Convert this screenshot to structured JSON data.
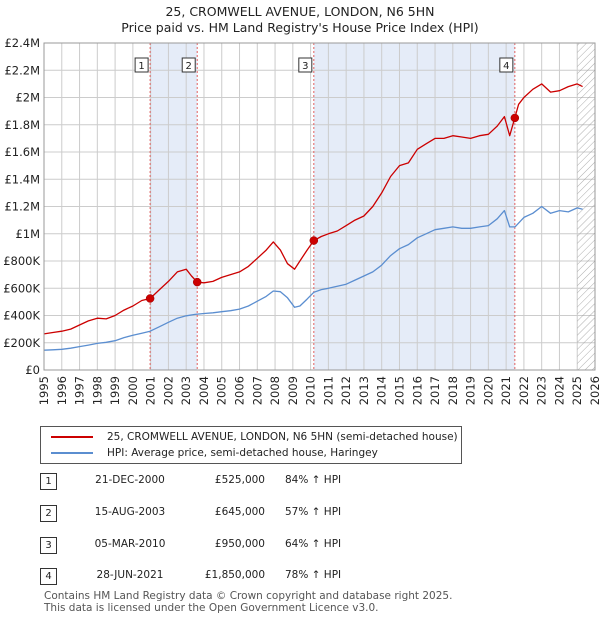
{
  "title_line1": "25, CROMWELL AVENUE, LONDON, N6 5HN",
  "title_line2": "Price paid vs. HM Land Registry's House Price Index (HPI)",
  "colors": {
    "property": "#cc0000",
    "hpi": "#5b8ed0",
    "shade": "#dce6f5",
    "grid": "#cccccc",
    "vline": "#e06060",
    "hatch": "#999999"
  },
  "legend": {
    "property_label": "25, CROMWELL AVENUE, LONDON, N6 5HN (semi-detached house)",
    "hpi_label": "HPI: Average price, semi-detached house, Haringey"
  },
  "transactions": [
    {
      "num": "1",
      "date": "21-DEC-2000",
      "price": "£525,000",
      "hpi": "84% ↑ HPI"
    },
    {
      "num": "2",
      "date": "15-AUG-2003",
      "price": "£645,000",
      "hpi": "57% ↑ HPI"
    },
    {
      "num": "3",
      "date": "05-MAR-2010",
      "price": "£950,000",
      "hpi": "64% ↑ HPI"
    },
    {
      "num": "4",
      "date": "28-JUN-2021",
      "price": "£1,850,000",
      "hpi": "78% ↑ HPI"
    }
  ],
  "footer": {
    "line1": "Contains HM Land Registry data © Crown copyright and database right 2025.",
    "line2": "This data is licensed under the Open Government Licence v3.0."
  },
  "chart_data": {
    "type": "line",
    "title": "25, CROMWELL AVENUE, LONDON, N6 5HN — Price paid vs. HM Land Registry's House Price Index (HPI)",
    "xlim": [
      1995,
      2026
    ],
    "ylim": [
      0,
      2400000
    ],
    "x_ticks": [
      "1995",
      "1996",
      "1997",
      "1998",
      "1999",
      "2000",
      "2001",
      "2002",
      "2003",
      "2004",
      "2005",
      "2006",
      "2007",
      "2008",
      "2009",
      "2010",
      "2011",
      "2012",
      "2013",
      "2014",
      "2015",
      "2016",
      "2017",
      "2018",
      "2019",
      "2020",
      "2021",
      "2022",
      "2023",
      "2024",
      "2025",
      "2026"
    ],
    "y_ticks": [
      {
        "value": 0,
        "label": "£0"
      },
      {
        "value": 200000,
        "label": "£200K"
      },
      {
        "value": 400000,
        "label": "£400K"
      },
      {
        "value": 600000,
        "label": "£600K"
      },
      {
        "value": 800000,
        "label": "£800K"
      },
      {
        "value": 1000000,
        "label": "£1M"
      },
      {
        "value": 1200000,
        "label": "£1.2M"
      },
      {
        "value": 1400000,
        "label": "£1.4M"
      },
      {
        "value": 1600000,
        "label": "£1.6M"
      },
      {
        "value": 1800000,
        "label": "£1.8M"
      },
      {
        "value": 2000000,
        "label": "£2M"
      },
      {
        "value": 2200000,
        "label": "£2.2M"
      },
      {
        "value": 2400000,
        "label": "£2.4M"
      }
    ],
    "shaded_ranges": [
      [
        2000.97,
        2003.62
      ],
      [
        2010.18,
        2021.49
      ]
    ],
    "hatch_from": 2025.0,
    "sales": [
      {
        "label": "1",
        "x": 2000.97,
        "y": 525000
      },
      {
        "label": "2",
        "x": 2003.62,
        "y": 645000
      },
      {
        "label": "3",
        "x": 2010.18,
        "y": 950000
      },
      {
        "label": "4",
        "x": 2021.49,
        "y": 1850000
      }
    ],
    "series": [
      {
        "name": "25, CROMWELL AVENUE, LONDON, N6 5HN (semi-detached house)",
        "x": [
          1995,
          1995.5,
          1996,
          1996.5,
          1997,
          1997.5,
          1998,
          1998.5,
          1999,
          1999.5,
          2000,
          2000.5,
          2000.97,
          2001.5,
          2002,
          2002.5,
          2003,
          2003.3,
          2003.62,
          2004,
          2004.5,
          2005,
          2005.5,
          2006,
          2006.5,
          2007,
          2007.5,
          2007.9,
          2008.3,
          2008.7,
          2009.1,
          2009.4,
          2009.8,
          2010.18,
          2010.6,
          2011,
          2011.5,
          2012,
          2012.5,
          2013,
          2013.5,
          2014,
          2014.5,
          2015,
          2015.5,
          2016,
          2016.5,
          2017,
          2017.5,
          2018,
          2018.5,
          2019,
          2019.5,
          2020,
          2020.5,
          2020.9,
          2021.2,
          2021.49,
          2021.7,
          2022,
          2022.5,
          2023,
          2023.5,
          2024,
          2024.5,
          2025,
          2025.3
        ],
        "y": [
          265000,
          275000,
          285000,
          300000,
          330000,
          360000,
          380000,
          375000,
          400000,
          440000,
          470000,
          510000,
          525000,
          590000,
          650000,
          720000,
          740000,
          690000,
          645000,
          640000,
          650000,
          680000,
          700000,
          720000,
          760000,
          820000,
          880000,
          940000,
          880000,
          780000,
          740000,
          800000,
          880000,
          950000,
          980000,
          1000000,
          1020000,
          1060000,
          1100000,
          1130000,
          1200000,
          1300000,
          1420000,
          1500000,
          1520000,
          1620000,
          1660000,
          1700000,
          1700000,
          1720000,
          1710000,
          1700000,
          1720000,
          1730000,
          1790000,
          1860000,
          1720000,
          1850000,
          1950000,
          2000000,
          2060000,
          2100000,
          2040000,
          2050000,
          2080000,
          2100000,
          2080000
        ]
      },
      {
        "name": "HPI: Average price, semi-detached house, Haringey",
        "x": [
          1995,
          1995.5,
          1996,
          1996.5,
          1997,
          1997.5,
          1998,
          1998.5,
          1999,
          1999.5,
          2000,
          2000.5,
          2000.97,
          2001.5,
          2002,
          2002.5,
          2003,
          2003.5,
          2004,
          2004.5,
          2005,
          2005.5,
          2006,
          2006.5,
          2007,
          2007.5,
          2007.9,
          2008.3,
          2008.7,
          2009.1,
          2009.4,
          2009.8,
          2010.18,
          2010.6,
          2011,
          2011.5,
          2012,
          2012.5,
          2013,
          2013.5,
          2014,
          2014.5,
          2015,
          2015.5,
          2016,
          2016.5,
          2017,
          2017.5,
          2018,
          2018.5,
          2019,
          2019.5,
          2020,
          2020.5,
          2020.9,
          2021.2,
          2021.5,
          2022,
          2022.5,
          2023,
          2023.5,
          2024,
          2024.5,
          2025,
          2025.3
        ],
        "y": [
          145000,
          148000,
          152000,
          160000,
          172000,
          183000,
          195000,
          203000,
          215000,
          238000,
          255000,
          270000,
          285000,
          318000,
          350000,
          380000,
          398000,
          408000,
          415000,
          420000,
          428000,
          435000,
          447000,
          470000,
          505000,
          540000,
          580000,
          575000,
          530000,
          460000,
          470000,
          520000,
          570000,
          590000,
          600000,
          615000,
          630000,
          660000,
          690000,
          720000,
          770000,
          840000,
          890000,
          920000,
          970000,
          1000000,
          1030000,
          1040000,
          1050000,
          1040000,
          1040000,
          1050000,
          1060000,
          1110000,
          1170000,
          1050000,
          1050000,
          1120000,
          1150000,
          1200000,
          1150000,
          1170000,
          1160000,
          1190000,
          1180000
        ]
      }
    ]
  }
}
